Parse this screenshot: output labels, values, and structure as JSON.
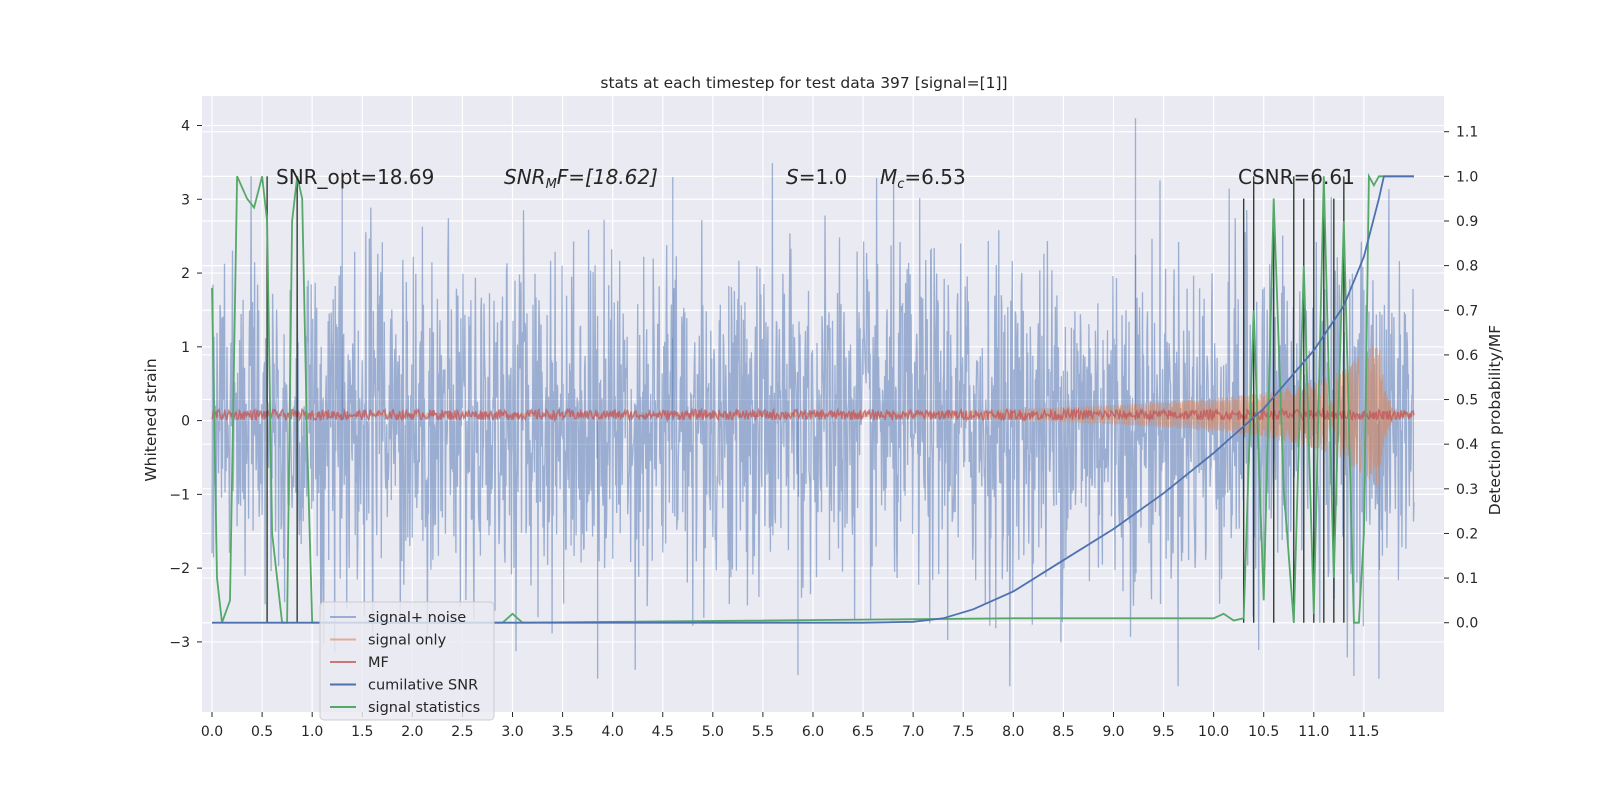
{
  "chart_data": {
    "type": "line",
    "title": "stats at each timestep for test data 397 [signal=[1]]",
    "ylabel": "Whitened strain",
    "y2label": "Detection probability/MF",
    "xlim": [
      -0.1,
      12.3
    ],
    "ylim": [
      -3.95,
      4.4
    ],
    "y2lim": [
      -0.2,
      1.18
    ],
    "x_ticks": [
      "0.0",
      "0.5",
      "1.0",
      "1.5",
      "2.0",
      "2.5",
      "3.0",
      "3.5",
      "4.0",
      "4.5",
      "5.0",
      "5.5",
      "6.0",
      "6.5",
      "7.0",
      "7.5",
      "8.0",
      "8.5",
      "9.0",
      "9.5",
      "10.0",
      "10.5",
      "11.0",
      "11.5"
    ],
    "y_ticks": [
      "4",
      "3",
      "2",
      "1",
      "0",
      "−1",
      "−2",
      "−3"
    ],
    "y2_ticks": [
      "1.1",
      "1.0",
      "0.9",
      "0.8",
      "0.7",
      "0.6",
      "0.5",
      "0.4",
      "0.3",
      "0.2",
      "0.1",
      "0.0"
    ],
    "grid": true,
    "legend_position": "lower-left",
    "annotations": {
      "snr_opt": "SNR_opt=18.69",
      "snr_mf_base": "SNR",
      "snr_mf_sub": "M",
      "snr_mf_rest": "F=[18.62]",
      "s_sym": "S",
      "s_val": "=1.0",
      "mc_sym": "M",
      "mc_sub": "c",
      "mc_val": "=6.53",
      "csnr": "CSNR=6.61"
    },
    "series": [
      {
        "name": "signal+ noise",
        "color": "#4c72b0",
        "axis": "left",
        "note": "whitened noise, amplitude ~±2.5 with spikes to ~4.1"
      },
      {
        "name": "signal only",
        "color": "#dd8452",
        "axis": "left",
        "x": [
          0,
          7.0,
          8.0,
          9.0,
          10.0,
          10.5,
          11.0,
          11.3,
          11.5,
          11.65,
          11.7,
          11.8,
          12.0
        ],
        "envelope": [
          0.02,
          0.03,
          0.07,
          0.13,
          0.22,
          0.3,
          0.45,
          0.6,
          0.85,
          1.0,
          0.4,
          0.05,
          0.02
        ]
      },
      {
        "name": "MF",
        "color": "#c44e52",
        "axis": "left",
        "level": 0.08,
        "note": "small oscillation around 0.08"
      },
      {
        "name": "cumilative SNR",
        "color": "#4c72b0",
        "axis": "right",
        "x": [
          0,
          6.5,
          7.0,
          7.3,
          7.6,
          8.0,
          8.5,
          9.0,
          9.5,
          10.0,
          10.5,
          11.0,
          11.3,
          11.5,
          11.65,
          11.7,
          12.0
        ],
        "y": [
          0,
          0,
          0.002,
          0.01,
          0.03,
          0.07,
          0.14,
          0.21,
          0.29,
          0.38,
          0.48,
          0.61,
          0.71,
          0.82,
          0.95,
          1.0,
          1.0
        ]
      },
      {
        "name": "signal statistics",
        "color": "#55a868",
        "axis": "right",
        "x": [
          0,
          0.05,
          0.1,
          0.18,
          0.25,
          0.35,
          0.42,
          0.5,
          0.55,
          0.6,
          0.7,
          0.75,
          0.8,
          0.85,
          0.9,
          0.95,
          1.0,
          1.05,
          1.1,
          2.9,
          3.0,
          3.1,
          8.0,
          10.0,
          10.1,
          10.2,
          10.3,
          10.4,
          10.5,
          10.6,
          10.7,
          10.8,
          10.9,
          11.0,
          11.1,
          11.2,
          11.3,
          11.4,
          11.45,
          11.5,
          11.55,
          11.6,
          11.65,
          12.0
        ],
        "y": [
          0.75,
          0.1,
          0,
          0.05,
          1.0,
          0.95,
          0.93,
          1.0,
          0.9,
          0.2,
          0,
          0,
          0.9,
          1.0,
          0.95,
          0.4,
          0,
          0,
          0,
          0,
          0.02,
          0,
          0.01,
          0.01,
          0.02,
          0.005,
          0.01,
          0.7,
          0.05,
          0.95,
          0.3,
          0,
          0.8,
          0.02,
          1.0,
          0.1,
          0.9,
          0,
          0,
          0.2,
          1.0,
          0.98,
          1.0,
          1.0
        ]
      },
      {
        "name": "signal statistics (dark)",
        "color": "#2f3f2f",
        "axis": "right",
        "legend": false,
        "x": [
          0.55,
          0.85,
          10.3,
          10.4,
          10.6,
          10.8,
          10.9,
          11.0,
          11.1,
          11.2,
          11.3
        ],
        "y": [
          1.0,
          1.0,
          0.95,
          1.0,
          0.95,
          1.0,
          0.95,
          1.0,
          1.0,
          0.95,
          1.0
        ]
      }
    ],
    "legend": [
      "signal+ noise",
      "signal only",
      "MF",
      "cumilative SNR",
      "signal statistics"
    ]
  }
}
